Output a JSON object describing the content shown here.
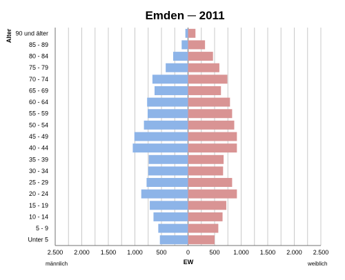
{
  "chart_data": {
    "type": "bar",
    "orientation": "horizontal-population-pyramid",
    "title": "Emden ─ 2011",
    "ylabel": "Alter",
    "xlabel": "EW",
    "left_label": "männlich",
    "right_label": "weiblich",
    "categories": [
      "90 und älter",
      "85 - 89",
      "80 - 84",
      "75 - 79",
      "70 - 74",
      "65 - 69",
      "60 - 64",
      "55 - 59",
      "50 - 54",
      "45 - 49",
      "40 - 44",
      "35 - 39",
      "30 - 34",
      "25 - 29",
      "20 - 24",
      "15 - 19",
      "10 - 14",
      "5 - 9",
      "Unter 5"
    ],
    "series": [
      {
        "name": "männlich",
        "color": "#8db4e8",
        "values": [
          50,
          120,
          280,
          420,
          670,
          630,
          770,
          760,
          830,
          1010,
          1040,
          740,
          750,
          780,
          880,
          720,
          650,
          560,
          530
        ]
      },
      {
        "name": "weiblich",
        "color": "#d99494",
        "values": [
          140,
          320,
          470,
          590,
          740,
          620,
          790,
          830,
          870,
          920,
          920,
          670,
          660,
          830,
          920,
          720,
          650,
          570,
          500
        ]
      }
    ],
    "xlim": [
      -2500,
      2500
    ],
    "x_ticks": [
      -2500,
      -2000,
      -1500,
      -1000,
      -500,
      0,
      500,
      1000,
      1500,
      2000,
      2500
    ],
    "x_tick_labels": [
      "2.500",
      "2.000",
      "1.500",
      "1.000",
      "500",
      "0",
      "500",
      "1.000",
      "1.500",
      "2.000",
      "2.500"
    ],
    "minor_grid_step": 250,
    "grid": true
  }
}
